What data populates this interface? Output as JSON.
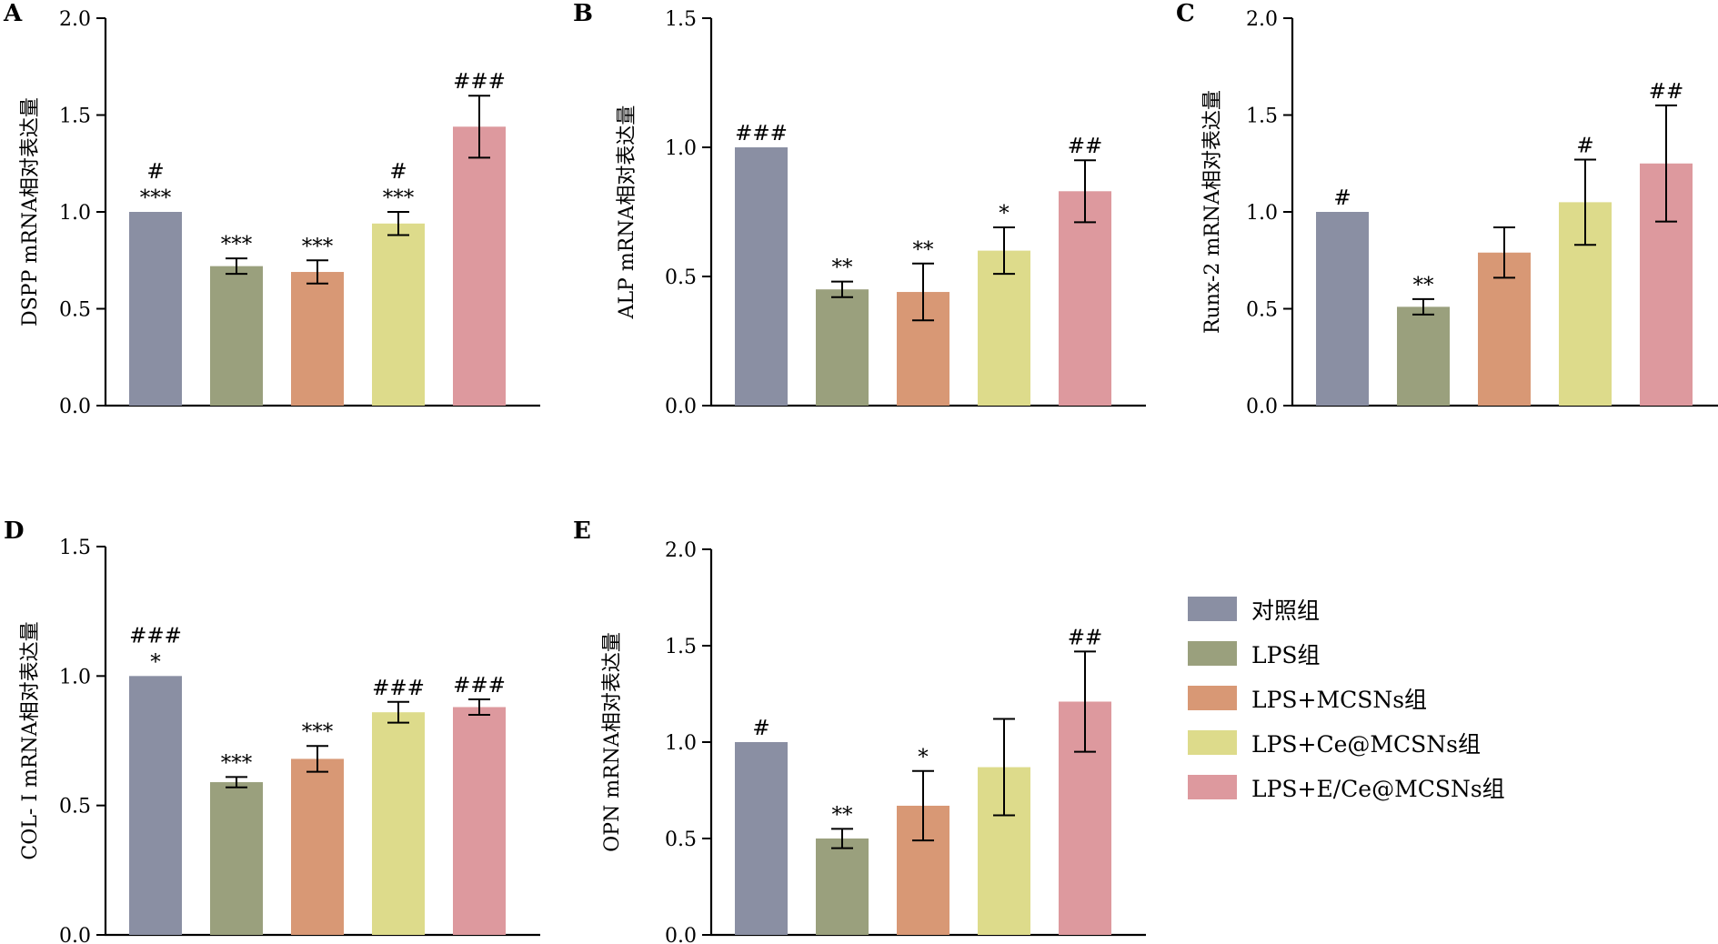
{
  "chart_data": [
    {
      "type": "bar",
      "panel": "A",
      "ylabel": "DSPP mRNA相对表达量",
      "ylim": [
        0,
        2.0
      ],
      "yticks": [
        "0.0",
        "0.5",
        "1.0",
        "1.5",
        "2.0"
      ],
      "categories": [
        "对照组",
        "LPS组",
        "LPS+MCSNs组",
        "LPS+Ce@MCSNs组",
        "LPS+E/Ce@MCSNs组"
      ],
      "values": [
        1.0,
        0.72,
        0.69,
        0.94,
        1.44
      ],
      "errors": [
        0.0,
        0.04,
        0.06,
        0.06,
        0.16
      ],
      "annotations": [
        [
          "#",
          "***"
        ],
        [
          "***"
        ],
        [
          "***"
        ],
        [
          "#",
          "***"
        ],
        [
          "###"
        ]
      ]
    },
    {
      "type": "bar",
      "panel": "B",
      "ylabel": "ALP mRNA相对表达量",
      "ylim": [
        0,
        1.5
      ],
      "yticks": [
        "0.0",
        "0.5",
        "1.0",
        "1.5"
      ],
      "categories": [
        "对照组",
        "LPS组",
        "LPS+MCSNs组",
        "LPS+Ce@MCSNs组",
        "LPS+E/Ce@MCSNs组"
      ],
      "values": [
        1.0,
        0.45,
        0.44,
        0.6,
        0.83
      ],
      "errors": [
        0.0,
        0.03,
        0.11,
        0.09,
        0.12
      ],
      "annotations": [
        [
          "###"
        ],
        [
          "**"
        ],
        [
          "**"
        ],
        [
          "*"
        ],
        [
          "##"
        ]
      ]
    },
    {
      "type": "bar",
      "panel": "C",
      "ylabel": "Runx-2 mRNA相对表达量",
      "ylim": [
        0,
        2.0
      ],
      "yticks": [
        "0.0",
        "0.5",
        "1.0",
        "1.5",
        "2.0"
      ],
      "categories": [
        "对照组",
        "LPS组",
        "LPS+MCSNs组",
        "LPS+Ce@MCSNs组",
        "LPS+E/Ce@MCSNs组"
      ],
      "values": [
        1.0,
        0.51,
        0.79,
        1.05,
        1.25
      ],
      "errors": [
        0.0,
        0.04,
        0.13,
        0.22,
        0.3
      ],
      "annotations": [
        [
          "#"
        ],
        [
          "**"
        ],
        [],
        [
          "#"
        ],
        [
          "##"
        ]
      ]
    },
    {
      "type": "bar",
      "panel": "D",
      "ylabel": "COL- Ⅰ mRNA相对表达量",
      "ylim": [
        0,
        1.5
      ],
      "yticks": [
        "0.0",
        "0.5",
        "1.0",
        "1.5"
      ],
      "categories": [
        "对照组",
        "LPS组",
        "LPS+MCSNs组",
        "LPS+Ce@MCSNs组",
        "LPS+E/Ce@MCSNs组"
      ],
      "values": [
        1.0,
        0.59,
        0.68,
        0.86,
        0.88
      ],
      "errors": [
        0.0,
        0.02,
        0.05,
        0.04,
        0.03
      ],
      "annotations": [
        [
          "###",
          "*"
        ],
        [
          "***"
        ],
        [
          "***"
        ],
        [
          "###"
        ],
        [
          "###"
        ]
      ]
    },
    {
      "type": "bar",
      "panel": "E",
      "ylabel": "OPN mRNA相对表达量",
      "ylim": [
        0,
        2.0
      ],
      "yticks": [
        "0.0",
        "0.5",
        "1.0",
        "1.5",
        "2.0"
      ],
      "categories": [
        "对照组",
        "LPS组",
        "LPS+MCSNs组",
        "LPS+Ce@MCSNs组",
        "LPS+E/Ce@MCSNs组"
      ],
      "values": [
        1.0,
        0.5,
        0.67,
        0.87,
        1.21
      ],
      "errors": [
        0.0,
        0.05,
        0.18,
        0.25,
        0.26
      ],
      "annotations": [
        [
          "#"
        ],
        [
          "**"
        ],
        [
          "*"
        ],
        [],
        [
          "##"
        ]
      ]
    }
  ],
  "legend": [
    {
      "label": "对照组",
      "color": "#8a8fa3"
    },
    {
      "label": "LPS组",
      "color": "#9aa07d"
    },
    {
      "label": "LPS+MCSNs组",
      "color": "#d89875"
    },
    {
      "label": "LPS+Ce@MCSNs组",
      "color": "#dddb8b"
    },
    {
      "label": "LPS+E/Ce@MCSNs组",
      "color": "#dd999e"
    }
  ]
}
